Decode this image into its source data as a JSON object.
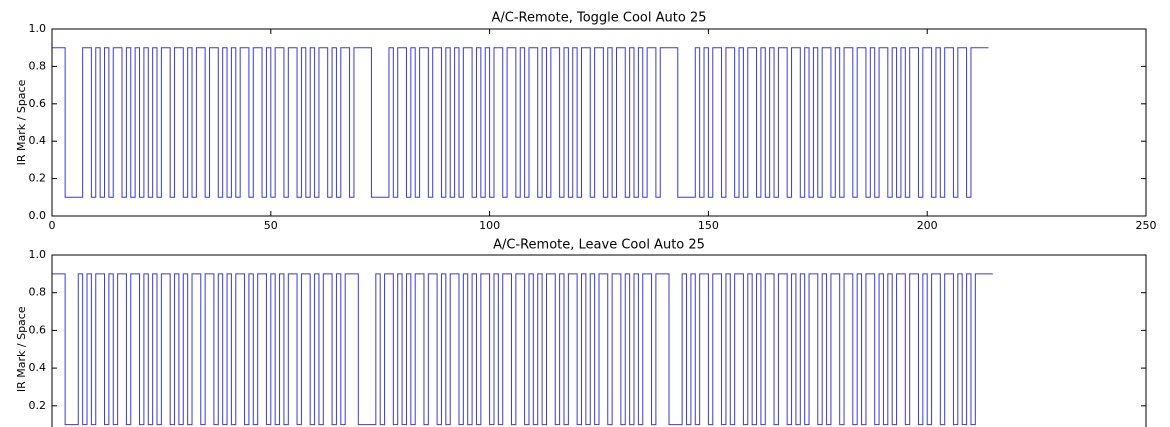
{
  "chart_data": [
    {
      "type": "line",
      "title": "A/C-Remote, Toggle Cool Auto 25",
      "ylabel": "IR Mark / Space",
      "color": "#3a3ad8",
      "xlim": [
        0,
        250
      ],
      "xticks": [
        0,
        50,
        100,
        150,
        200,
        250
      ],
      "ylim": [
        0,
        1
      ],
      "yticks": [
        {
          "value": 0,
          "label": "0.0"
        },
        0.2,
        0.4,
        0.6,
        0.8,
        {
          "value": 1,
          "label": "1.0"
        }
      ],
      "x": [
        0,
        3,
        7,
        9,
        10,
        11,
        12,
        13,
        14,
        16,
        17,
        18,
        19,
        20,
        21,
        22,
        23,
        24,
        25,
        27,
        28,
        30,
        31,
        32,
        33,
        35,
        36,
        38,
        39,
        40,
        41,
        42,
        43,
        45,
        46,
        48,
        49,
        50,
        51,
        53,
        54,
        56,
        57,
        58,
        59,
        60,
        61,
        63,
        64,
        65,
        66,
        68,
        69,
        73,
        77,
        78,
        79,
        81,
        82,
        83,
        84,
        86,
        87,
        89,
        90,
        91,
        92,
        93,
        94,
        96,
        97,
        98,
        99,
        100,
        101,
        103,
        104,
        106,
        107,
        108,
        109,
        111,
        112,
        113,
        114,
        116,
        117,
        118,
        119,
        120,
        121,
        123,
        124,
        126,
        127,
        128,
        129,
        131,
        132,
        133,
        134,
        135,
        136,
        138,
        139,
        143,
        147,
        148,
        149,
        150,
        151,
        153,
        154,
        156,
        157,
        158,
        159,
        161,
        162,
        163,
        164,
        165,
        166,
        168,
        169,
        171,
        172,
        173,
        174,
        175,
        176,
        178,
        179,
        180,
        181,
        183,
        184,
        186,
        187,
        188,
        189,
        191,
        192,
        193,
        194,
        195,
        196,
        198,
        199,
        201,
        202,
        203,
        204,
        206,
        207,
        209,
        210,
        214
      ],
      "values": [
        0.9,
        0.1,
        0.9,
        0.1,
        0.9,
        0.1,
        0.9,
        0.1,
        0.9,
        0.1,
        0.9,
        0.1,
        0.9,
        0.1,
        0.9,
        0.1,
        0.9,
        0.1,
        0.9,
        0.1,
        0.9,
        0.1,
        0.9,
        0.1,
        0.9,
        0.1,
        0.9,
        0.1,
        0.9,
        0.1,
        0.9,
        0.1,
        0.9,
        0.1,
        0.9,
        0.1,
        0.9,
        0.1,
        0.9,
        0.1,
        0.9,
        0.1,
        0.9,
        0.1,
        0.9,
        0.1,
        0.9,
        0.1,
        0.9,
        0.1,
        0.9,
        0.1,
        0.9,
        0.1,
        0.9,
        0.1,
        0.9,
        0.1,
        0.9,
        0.1,
        0.9,
        0.1,
        0.9,
        0.1,
        0.9,
        0.1,
        0.9,
        0.1,
        0.9,
        0.1,
        0.9,
        0.1,
        0.9,
        0.1,
        0.9,
        0.1,
        0.9,
        0.1,
        0.9,
        0.1,
        0.9,
        0.1,
        0.9,
        0.1,
        0.9,
        0.1,
        0.9,
        0.1,
        0.9,
        0.1,
        0.9,
        0.1,
        0.9,
        0.1,
        0.9,
        0.1,
        0.9,
        0.1,
        0.9,
        0.1,
        0.9,
        0.1,
        0.9,
        0.1,
        0.9,
        0.1,
        0.9,
        0.1,
        0.9,
        0.1,
        0.9,
        0.1,
        0.9,
        0.1,
        0.9,
        0.1,
        0.9,
        0.1,
        0.9,
        0.1,
        0.9,
        0.1,
        0.9,
        0.1,
        0.9,
        0.1,
        0.9,
        0.1,
        0.9,
        0.1,
        0.9,
        0.1,
        0.9,
        0.1,
        0.9,
        0.1,
        0.9,
        0.1,
        0.9,
        0.1,
        0.9,
        0.1,
        0.9,
        0.1,
        0.9,
        0.1,
        0.9,
        0.1,
        0.9,
        0.1,
        0.9,
        0.1,
        0.9,
        0.1,
        0.9,
        0.1,
        0.9,
        0.9
      ]
    },
    {
      "type": "line",
      "title": "A/C-Remote, Leave Cool Auto 25",
      "ylabel": "IR Mark / Space",
      "color": "#3a3ad8",
      "xlim": [
        0,
        250
      ],
      "ylim": [
        0,
        1
      ],
      "yticks": [
        0.2,
        0.4,
        0.6,
        0.8,
        {
          "value": 1,
          "label": "1.0"
        }
      ],
      "x": [
        0,
        3,
        6,
        7,
        8,
        9,
        10,
        12,
        13,
        14,
        15,
        17,
        18,
        20,
        21,
        22,
        23,
        24,
        25,
        27,
        28,
        29,
        30,
        31,
        32,
        34,
        35,
        37,
        38,
        39,
        40,
        41,
        42,
        44,
        45,
        46,
        47,
        49,
        50,
        51,
        52,
        53,
        54,
        56,
        57,
        59,
        60,
        61,
        62,
        64,
        65,
        66,
        67,
        70,
        74,
        75,
        76,
        78,
        79,
        80,
        81,
        82,
        83,
        85,
        86,
        88,
        89,
        90,
        91,
        93,
        94,
        95,
        96,
        97,
        98,
        100,
        101,
        102,
        103,
        105,
        106,
        108,
        109,
        110,
        111,
        112,
        113,
        115,
        116,
        117,
        118,
        120,
        121,
        122,
        123,
        124,
        125,
        127,
        128,
        130,
        131,
        132,
        133,
        134,
        135,
        137,
        138,
        141,
        144,
        145,
        146,
        147,
        148,
        150,
        151,
        153,
        154,
        155,
        156,
        158,
        159,
        160,
        161,
        162,
        163,
        165,
        166,
        168,
        169,
        170,
        171,
        172,
        173,
        175,
        176,
        177,
        178,
        180,
        181,
        183,
        184,
        185,
        186,
        188,
        189,
        190,
        191,
        192,
        193,
        195,
        196,
        198,
        199,
        200,
        201,
        203,
        204,
        206,
        207,
        208,
        209,
        210,
        211,
        215
      ],
      "values": [
        0.9,
        0.1,
        0.9,
        0.1,
        0.9,
        0.1,
        0.9,
        0.1,
        0.9,
        0.1,
        0.9,
        0.1,
        0.9,
        0.1,
        0.9,
        0.1,
        0.9,
        0.1,
        0.9,
        0.1,
        0.9,
        0.1,
        0.9,
        0.1,
        0.9,
        0.1,
        0.9,
        0.1,
        0.9,
        0.1,
        0.9,
        0.1,
        0.9,
        0.1,
        0.9,
        0.1,
        0.9,
        0.1,
        0.9,
        0.1,
        0.9,
        0.1,
        0.9,
        0.1,
        0.9,
        0.1,
        0.9,
        0.1,
        0.9,
        0.1,
        0.9,
        0.1,
        0.9,
        0.1,
        0.9,
        0.1,
        0.9,
        0.1,
        0.9,
        0.1,
        0.9,
        0.1,
        0.9,
        0.1,
        0.9,
        0.1,
        0.9,
        0.1,
        0.9,
        0.1,
        0.9,
        0.1,
        0.9,
        0.1,
        0.9,
        0.1,
        0.9,
        0.1,
        0.9,
        0.1,
        0.9,
        0.1,
        0.9,
        0.1,
        0.9,
        0.1,
        0.9,
        0.1,
        0.9,
        0.1,
        0.9,
        0.1,
        0.9,
        0.1,
        0.9,
        0.1,
        0.9,
        0.1,
        0.9,
        0.1,
        0.9,
        0.1,
        0.9,
        0.1,
        0.9,
        0.1,
        0.9,
        0.1,
        0.9,
        0.1,
        0.9,
        0.1,
        0.9,
        0.1,
        0.9,
        0.1,
        0.9,
        0.1,
        0.9,
        0.1,
        0.9,
        0.1,
        0.9,
        0.1,
        0.9,
        0.1,
        0.9,
        0.1,
        0.9,
        0.1,
        0.9,
        0.1,
        0.9,
        0.1,
        0.9,
        0.1,
        0.9,
        0.1,
        0.9,
        0.1,
        0.9,
        0.1,
        0.9,
        0.1,
        0.9,
        0.1,
        0.9,
        0.1,
        0.9,
        0.1,
        0.9,
        0.1,
        0.9,
        0.1,
        0.9,
        0.1,
        0.9,
        0.1,
        0.9,
        0.1,
        0.9,
        0.1,
        0.9,
        0.9
      ]
    }
  ]
}
